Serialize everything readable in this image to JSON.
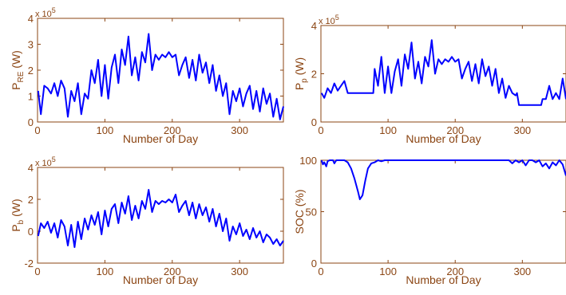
{
  "chart_data": [
    {
      "type": "line",
      "ylabel_main": "P",
      "ylabel_sub": "RE",
      "ylabel_unit": " (W)",
      "xlabel": "Number of Day",
      "exponent_base": "x 10",
      "exponent_power": "5",
      "xlim": [
        0,
        365
      ],
      "ylim": [
        0,
        4
      ],
      "xticks": [
        0,
        100,
        200,
        300
      ],
      "yticks": [
        0,
        1,
        2,
        3,
        4
      ],
      "color": "#0000ff",
      "x": [
        1,
        5,
        10,
        15,
        20,
        25,
        30,
        35,
        40,
        45,
        50,
        55,
        60,
        65,
        70,
        75,
        80,
        85,
        90,
        95,
        100,
        105,
        110,
        115,
        120,
        125,
        130,
        135,
        140,
        145,
        150,
        155,
        160,
        165,
        170,
        175,
        180,
        185,
        190,
        195,
        200,
        205,
        210,
        215,
        220,
        225,
        230,
        235,
        240,
        245,
        250,
        255,
        260,
        265,
        270,
        275,
        280,
        285,
        290,
        295,
        300,
        305,
        310,
        315,
        320,
        325,
        330,
        335,
        340,
        345,
        350,
        355,
        360,
        365
      ],
      "y": [
        1.2,
        0.3,
        1.4,
        1.3,
        1.1,
        1.5,
        1.0,
        1.6,
        1.3,
        0.2,
        1.2,
        0.8,
        1.5,
        0.3,
        1.1,
        0.9,
        2.0,
        1.5,
        2.4,
        1.0,
        2.2,
        0.9,
        2.1,
        2.6,
        1.5,
        2.8,
        2.2,
        3.3,
        1.8,
        2.5,
        1.6,
        2.7,
        2.3,
        3.4,
        2.0,
        2.6,
        2.4,
        2.6,
        2.5,
        2.7,
        2.5,
        2.6,
        1.8,
        2.2,
        2.5,
        1.7,
        2.4,
        1.6,
        2.6,
        1.9,
        2.3,
        1.5,
        2.2,
        1.2,
        1.8,
        1.0,
        1.5,
        0.3,
        1.2,
        0.8,
        1.3,
        0.6,
        1.1,
        1.4,
        0.5,
        1.2,
        0.4,
        1.3,
        0.7,
        1.1,
        0.2,
        0.9,
        0.1,
        0.6
      ]
    },
    {
      "type": "line",
      "ylabel_main": "P",
      "ylabel_sub": "p",
      "ylabel_unit": " (W)",
      "xlabel": "Number of Day",
      "exponent_base": "x 10",
      "exponent_power": "5",
      "xlim": [
        0,
        365
      ],
      "ylim": [
        0,
        4
      ],
      "xticks": [
        0,
        100,
        200,
        300
      ],
      "yticks": [
        0,
        2,
        4
      ],
      "color": "#0000ff",
      "x": [
        1,
        5,
        10,
        15,
        20,
        25,
        30,
        35,
        40,
        45,
        50,
        55,
        60,
        65,
        70,
        75,
        78,
        80,
        85,
        90,
        95,
        100,
        105,
        110,
        115,
        120,
        125,
        130,
        135,
        140,
        145,
        150,
        155,
        160,
        165,
        170,
        175,
        180,
        185,
        190,
        195,
        200,
        205,
        210,
        215,
        220,
        225,
        230,
        235,
        240,
        245,
        250,
        255,
        260,
        265,
        270,
        275,
        280,
        285,
        290,
        292,
        295,
        300,
        305,
        310,
        315,
        320,
        325,
        328,
        330,
        335,
        340,
        345,
        350,
        355,
        360,
        365
      ],
      "y": [
        1.2,
        1.0,
        1.4,
        1.2,
        1.6,
        1.3,
        1.5,
        1.7,
        1.2,
        1.2,
        1.2,
        1.2,
        1.2,
        1.2,
        1.2,
        1.2,
        1.2,
        2.2,
        1.5,
        2.7,
        1.2,
        2.3,
        1.2,
        2.1,
        2.6,
        1.5,
        2.8,
        2.2,
        3.3,
        1.8,
        2.5,
        1.6,
        2.7,
        2.3,
        3.4,
        2.0,
        2.6,
        2.4,
        2.6,
        2.5,
        2.7,
        2.5,
        2.6,
        1.8,
        2.2,
        2.5,
        1.7,
        2.4,
        1.6,
        2.6,
        1.9,
        2.3,
        1.5,
        2.2,
        1.2,
        1.8,
        1.0,
        1.5,
        1.2,
        1.1,
        1.2,
        0.7,
        0.7,
        0.7,
        0.7,
        0.7,
        0.7,
        0.7,
        0.7,
        0.95,
        0.95,
        1.5,
        0.95,
        1.2,
        0.95,
        1.8,
        0.95
      ]
    },
    {
      "type": "line",
      "ylabel_main": "P",
      "ylabel_sub": "b",
      "ylabel_unit": " (W)",
      "xlabel": "Number of Day",
      "exponent_base": "x 10",
      "exponent_power": "5",
      "xlim": [
        0,
        365
      ],
      "ylim": [
        -2,
        4
      ],
      "xticks": [
        0,
        100,
        200,
        300
      ],
      "yticks": [
        -2,
        0,
        2,
        4
      ],
      "color": "#0000ff",
      "x": [
        1,
        5,
        10,
        15,
        20,
        25,
        30,
        35,
        40,
        45,
        50,
        55,
        60,
        65,
        70,
        75,
        80,
        85,
        90,
        95,
        100,
        105,
        110,
        115,
        120,
        125,
        130,
        135,
        140,
        145,
        150,
        155,
        160,
        165,
        170,
        175,
        180,
        185,
        190,
        195,
        200,
        205,
        210,
        215,
        220,
        225,
        230,
        235,
        240,
        245,
        250,
        255,
        260,
        265,
        270,
        275,
        280,
        285,
        290,
        295,
        300,
        305,
        310,
        315,
        320,
        325,
        330,
        335,
        340,
        345,
        350,
        355,
        360,
        365
      ],
      "y": [
        -0.3,
        0.5,
        0.2,
        0.6,
        -0.1,
        0.5,
        -0.4,
        0.7,
        0.3,
        -0.9,
        0.4,
        -1.0,
        0.6,
        -0.5,
        0.8,
        0.1,
        1.0,
        0.4,
        1.2,
        -0.2,
        1.3,
        0.3,
        1.4,
        1.7,
        0.5,
        1.8,
        1.1,
        2.2,
        0.7,
        1.6,
        0.8,
        1.9,
        1.4,
        2.6,
        1.2,
        1.9,
        1.7,
        1.9,
        1.8,
        2.0,
        1.8,
        2.3,
        1.2,
        1.6,
        1.9,
        1.0,
        1.8,
        0.8,
        1.7,
        1.0,
        1.5,
        0.6,
        1.4,
        0.3,
        1.1,
        0.0,
        0.8,
        -0.6,
        0.3,
        -0.2,
        0.5,
        -0.3,
        0.1,
        -0.5,
        0.2,
        -0.4,
        0.0,
        -0.7,
        -0.2,
        -0.4,
        -0.8,
        -0.5,
        -0.9,
        -0.6
      ]
    },
    {
      "type": "line",
      "ylabel": "SOC (%)",
      "xlabel": "Number of Day",
      "xlim": [
        0,
        365
      ],
      "ylim": [
        0,
        100
      ],
      "xticks": [
        0,
        100,
        200,
        300
      ],
      "yticks": [
        0,
        50,
        100
      ],
      "color": "#0000ff",
      "x": [
        1,
        3,
        5,
        8,
        10,
        13,
        15,
        18,
        20,
        23,
        25,
        28,
        30,
        35,
        40,
        45,
        50,
        55,
        58,
        62,
        66,
        70,
        75,
        80,
        85,
        90,
        95,
        100,
        110,
        120,
        130,
        140,
        150,
        160,
        170,
        180,
        190,
        200,
        210,
        220,
        230,
        240,
        250,
        260,
        270,
        280,
        285,
        290,
        295,
        300,
        305,
        310,
        315,
        320,
        325,
        330,
        335,
        340,
        345,
        350,
        355,
        360,
        365
      ],
      "y": [
        100,
        96,
        98,
        94,
        99,
        100,
        100,
        100,
        97,
        100,
        100,
        100,
        100,
        100,
        98,
        92,
        82,
        70,
        62,
        66,
        80,
        92,
        97,
        98,
        100,
        99,
        100,
        100,
        100,
        100,
        100,
        100,
        100,
        100,
        100,
        100,
        100,
        100,
        100,
        100,
        100,
        100,
        100,
        100,
        100,
        100,
        97,
        100,
        98,
        100,
        95,
        100,
        100,
        98,
        100,
        94,
        97,
        92,
        98,
        95,
        100,
        96,
        85
      ]
    }
  ]
}
